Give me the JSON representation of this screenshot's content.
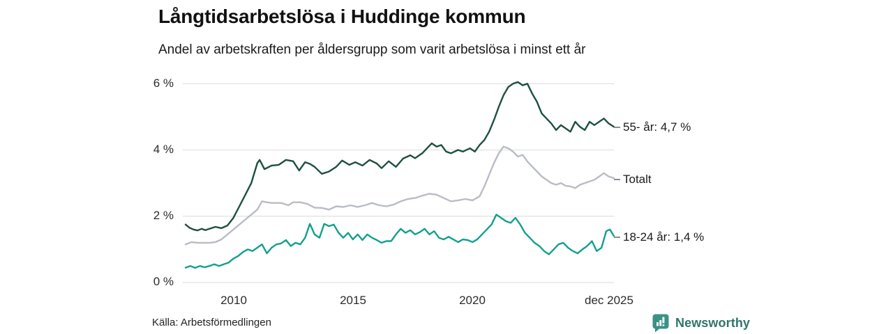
{
  "header": {
    "title": "Långtidsarbetslösa i Huddinge kommun",
    "subtitle": "Andel av arbetskraften per åldersgrupp som varit arbetslösa i minst ett år"
  },
  "footer": {
    "source": "Källa: Arbetsförmedlingen",
    "brand_name": "Newsworthy",
    "brand_color": "#3b9187",
    "brand_text_color": "#2e756c"
  },
  "colors": {
    "grid": "#e1e1e3",
    "axis_text": "#2b2b2b",
    "label_dash": "#8c8c8c",
    "series_55": "#1d4f40",
    "series_total": "#b9bcc6",
    "series_1824": "#12a08c"
  },
  "chart_data": {
    "type": "line",
    "title": "Långtidsarbetslösa i Huddinge kommun",
    "subtitle": "Andel av arbetskraften per åldersgrupp som varit arbetslösa i minst ett år",
    "grid": "horizontal",
    "legend_position": "right-end-labels",
    "x_axis": {
      "range": [
        2008.0,
        2025.92
      ],
      "ticks": [
        {
          "label": "2010",
          "year": 2010
        },
        {
          "label": "2015",
          "year": 2015
        },
        {
          "label": "2020",
          "year": 2020
        },
        {
          "label": "dec 2025",
          "year": 2025.92
        }
      ]
    },
    "y_axis": {
      "unit": "%",
      "range": [
        0,
        6
      ],
      "ticks": [
        {
          "label": "0 %",
          "value": 0
        },
        {
          "label": "2 %",
          "value": 2
        },
        {
          "label": "4 %",
          "value": 4
        },
        {
          "label": "6 %",
          "value": 6
        }
      ]
    },
    "series": [
      {
        "name": "55- år",
        "end_label": "55- år: 4,7 %",
        "latest_value": 4.7,
        "color": "#1d4f40",
        "points": [
          [
            2008.0,
            1.75
          ],
          [
            2008.17,
            1.65
          ],
          [
            2008.33,
            1.6
          ],
          [
            2008.5,
            1.57
          ],
          [
            2008.67,
            1.62
          ],
          [
            2008.83,
            1.58
          ],
          [
            2009.0,
            1.62
          ],
          [
            2009.25,
            1.68
          ],
          [
            2009.5,
            1.64
          ],
          [
            2009.75,
            1.72
          ],
          [
            2010.0,
            1.95
          ],
          [
            2010.25,
            2.3
          ],
          [
            2010.5,
            2.65
          ],
          [
            2010.75,
            3.0
          ],
          [
            2011.0,
            3.6
          ],
          [
            2011.1,
            3.7
          ],
          [
            2011.3,
            3.42
          ],
          [
            2011.6,
            3.53
          ],
          [
            2011.9,
            3.55
          ],
          [
            2012.2,
            3.7
          ],
          [
            2012.5,
            3.66
          ],
          [
            2012.75,
            3.38
          ],
          [
            2013.0,
            3.63
          ],
          [
            2013.2,
            3.58
          ],
          [
            2013.4,
            3.49
          ],
          [
            2013.7,
            3.28
          ],
          [
            2014.0,
            3.35
          ],
          [
            2014.3,
            3.49
          ],
          [
            2014.55,
            3.68
          ],
          [
            2014.85,
            3.55
          ],
          [
            2015.1,
            3.63
          ],
          [
            2015.4,
            3.53
          ],
          [
            2015.7,
            3.7
          ],
          [
            2016.0,
            3.59
          ],
          [
            2016.2,
            3.45
          ],
          [
            2016.5,
            3.66
          ],
          [
            2016.8,
            3.49
          ],
          [
            2017.1,
            3.74
          ],
          [
            2017.4,
            3.84
          ],
          [
            2017.6,
            3.75
          ],
          [
            2017.9,
            3.9
          ],
          [
            2018.1,
            4.05
          ],
          [
            2018.3,
            4.2
          ],
          [
            2018.5,
            4.1
          ],
          [
            2018.7,
            4.15
          ],
          [
            2018.9,
            3.95
          ],
          [
            2019.1,
            3.9
          ],
          [
            2019.4,
            4.0
          ],
          [
            2019.6,
            3.95
          ],
          [
            2019.9,
            4.05
          ],
          [
            2020.1,
            3.95
          ],
          [
            2020.3,
            4.15
          ],
          [
            2020.5,
            4.3
          ],
          [
            2020.7,
            4.55
          ],
          [
            2020.9,
            4.9
          ],
          [
            2021.1,
            5.3
          ],
          [
            2021.3,
            5.65
          ],
          [
            2021.5,
            5.9
          ],
          [
            2021.7,
            6.0
          ],
          [
            2021.9,
            6.05
          ],
          [
            2022.1,
            5.95
          ],
          [
            2022.3,
            6.0
          ],
          [
            2022.5,
            5.7
          ],
          [
            2022.7,
            5.45
          ],
          [
            2022.9,
            5.1
          ],
          [
            2023.1,
            4.95
          ],
          [
            2023.3,
            4.8
          ],
          [
            2023.5,
            4.6
          ],
          [
            2023.7,
            4.75
          ],
          [
            2023.9,
            4.65
          ],
          [
            2024.1,
            4.55
          ],
          [
            2024.3,
            4.85
          ],
          [
            2024.5,
            4.7
          ],
          [
            2024.7,
            4.6
          ],
          [
            2024.9,
            4.85
          ],
          [
            2025.1,
            4.75
          ],
          [
            2025.3,
            4.85
          ],
          [
            2025.5,
            4.95
          ],
          [
            2025.7,
            4.8
          ],
          [
            2025.92,
            4.7
          ]
        ]
      },
      {
        "name": "Totalt",
        "end_label": "Totalt",
        "color": "#b9bcc6",
        "points": [
          [
            2008.0,
            1.15
          ],
          [
            2008.25,
            1.22
          ],
          [
            2008.5,
            1.2
          ],
          [
            2008.75,
            1.2
          ],
          [
            2009.0,
            1.2
          ],
          [
            2009.25,
            1.22
          ],
          [
            2009.5,
            1.3
          ],
          [
            2009.75,
            1.45
          ],
          [
            2010.0,
            1.6
          ],
          [
            2010.25,
            1.75
          ],
          [
            2010.5,
            1.9
          ],
          [
            2010.75,
            2.05
          ],
          [
            2011.0,
            2.2
          ],
          [
            2011.2,
            2.45
          ],
          [
            2011.4,
            2.42
          ],
          [
            2011.6,
            2.4
          ],
          [
            2011.8,
            2.4
          ],
          [
            2012.0,
            2.4
          ],
          [
            2012.3,
            2.33
          ],
          [
            2012.5,
            2.42
          ],
          [
            2012.8,
            2.42
          ],
          [
            2013.1,
            2.37
          ],
          [
            2013.4,
            2.26
          ],
          [
            2013.7,
            2.25
          ],
          [
            2014.0,
            2.2
          ],
          [
            2014.3,
            2.3
          ],
          [
            2014.6,
            2.28
          ],
          [
            2014.9,
            2.33
          ],
          [
            2015.2,
            2.28
          ],
          [
            2015.5,
            2.33
          ],
          [
            2015.8,
            2.4
          ],
          [
            2016.1,
            2.33
          ],
          [
            2016.4,
            2.3
          ],
          [
            2016.7,
            2.35
          ],
          [
            2017.0,
            2.45
          ],
          [
            2017.3,
            2.52
          ],
          [
            2017.6,
            2.55
          ],
          [
            2017.9,
            2.62
          ],
          [
            2018.2,
            2.68
          ],
          [
            2018.5,
            2.65
          ],
          [
            2018.8,
            2.55
          ],
          [
            2019.1,
            2.45
          ],
          [
            2019.4,
            2.48
          ],
          [
            2019.7,
            2.52
          ],
          [
            2020.0,
            2.48
          ],
          [
            2020.3,
            2.6
          ],
          [
            2020.5,
            2.9
          ],
          [
            2020.7,
            3.25
          ],
          [
            2020.9,
            3.6
          ],
          [
            2021.1,
            3.9
          ],
          [
            2021.3,
            4.1
          ],
          [
            2021.5,
            4.05
          ],
          [
            2021.7,
            3.95
          ],
          [
            2021.9,
            3.8
          ],
          [
            2022.1,
            3.85
          ],
          [
            2022.3,
            3.65
          ],
          [
            2022.5,
            3.5
          ],
          [
            2022.7,
            3.35
          ],
          [
            2022.9,
            3.2
          ],
          [
            2023.1,
            3.1
          ],
          [
            2023.3,
            3.0
          ],
          [
            2023.5,
            2.95
          ],
          [
            2023.7,
            3.0
          ],
          [
            2023.9,
            2.92
          ],
          [
            2024.1,
            2.9
          ],
          [
            2024.3,
            2.85
          ],
          [
            2024.5,
            2.95
          ],
          [
            2024.7,
            3.0
          ],
          [
            2024.9,
            3.05
          ],
          [
            2025.1,
            3.1
          ],
          [
            2025.3,
            3.2
          ],
          [
            2025.5,
            3.3
          ],
          [
            2025.7,
            3.2
          ],
          [
            2025.92,
            3.15
          ]
        ]
      },
      {
        "name": "18-24 år",
        "end_label": "18-24 år: 1,4 %",
        "latest_value": 1.4,
        "color": "#12a08c",
        "points": [
          [
            2008.0,
            0.45
          ],
          [
            2008.2,
            0.5
          ],
          [
            2008.4,
            0.44
          ],
          [
            2008.6,
            0.5
          ],
          [
            2008.8,
            0.46
          ],
          [
            2009.0,
            0.5
          ],
          [
            2009.2,
            0.55
          ],
          [
            2009.4,
            0.5
          ],
          [
            2009.6,
            0.55
          ],
          [
            2009.8,
            0.6
          ],
          [
            2010.0,
            0.72
          ],
          [
            2010.2,
            0.8
          ],
          [
            2010.4,
            0.92
          ],
          [
            2010.6,
            1.0
          ],
          [
            2010.8,
            0.95
          ],
          [
            2011.0,
            1.05
          ],
          [
            2011.2,
            1.15
          ],
          [
            2011.4,
            0.88
          ],
          [
            2011.6,
            1.05
          ],
          [
            2011.8,
            1.15
          ],
          [
            2012.0,
            1.18
          ],
          [
            2012.2,
            1.28
          ],
          [
            2012.4,
            1.1
          ],
          [
            2012.6,
            1.2
          ],
          [
            2012.8,
            1.15
          ],
          [
            2013.0,
            1.35
          ],
          [
            2013.2,
            1.77
          ],
          [
            2013.4,
            1.45
          ],
          [
            2013.6,
            1.35
          ],
          [
            2013.8,
            1.77
          ],
          [
            2014.0,
            1.7
          ],
          [
            2014.2,
            1.75
          ],
          [
            2014.4,
            1.5
          ],
          [
            2014.6,
            1.35
          ],
          [
            2014.8,
            1.5
          ],
          [
            2015.0,
            1.3
          ],
          [
            2015.2,
            1.45
          ],
          [
            2015.4,
            1.28
          ],
          [
            2015.6,
            1.45
          ],
          [
            2015.8,
            1.35
          ],
          [
            2016.0,
            1.28
          ],
          [
            2016.2,
            1.2
          ],
          [
            2016.4,
            1.25
          ],
          [
            2016.6,
            1.25
          ],
          [
            2016.8,
            1.45
          ],
          [
            2017.0,
            1.62
          ],
          [
            2017.2,
            1.5
          ],
          [
            2017.4,
            1.58
          ],
          [
            2017.6,
            1.45
          ],
          [
            2017.8,
            1.52
          ],
          [
            2018.0,
            1.62
          ],
          [
            2018.2,
            1.45
          ],
          [
            2018.4,
            1.55
          ],
          [
            2018.6,
            1.35
          ],
          [
            2018.8,
            1.3
          ],
          [
            2019.0,
            1.38
          ],
          [
            2019.2,
            1.3
          ],
          [
            2019.4,
            1.22
          ],
          [
            2019.6,
            1.3
          ],
          [
            2019.8,
            1.28
          ],
          [
            2020.0,
            1.22
          ],
          [
            2020.2,
            1.3
          ],
          [
            2020.4,
            1.45
          ],
          [
            2020.6,
            1.6
          ],
          [
            2020.8,
            1.75
          ],
          [
            2021.0,
            2.05
          ],
          [
            2021.2,
            1.95
          ],
          [
            2021.4,
            1.85
          ],
          [
            2021.6,
            1.8
          ],
          [
            2021.8,
            1.95
          ],
          [
            2022.0,
            1.75
          ],
          [
            2022.2,
            1.5
          ],
          [
            2022.4,
            1.35
          ],
          [
            2022.6,
            1.2
          ],
          [
            2022.8,
            1.1
          ],
          [
            2023.0,
            0.95
          ],
          [
            2023.2,
            0.85
          ],
          [
            2023.4,
            1.0
          ],
          [
            2023.6,
            1.15
          ],
          [
            2023.8,
            1.2
          ],
          [
            2024.0,
            1.05
          ],
          [
            2024.2,
            0.95
          ],
          [
            2024.4,
            0.88
          ],
          [
            2024.6,
            1.0
          ],
          [
            2024.8,
            1.1
          ],
          [
            2025.0,
            1.25
          ],
          [
            2025.2,
            0.95
          ],
          [
            2025.4,
            1.05
          ],
          [
            2025.6,
            1.55
          ],
          [
            2025.75,
            1.6
          ],
          [
            2025.92,
            1.4
          ]
        ]
      }
    ]
  }
}
